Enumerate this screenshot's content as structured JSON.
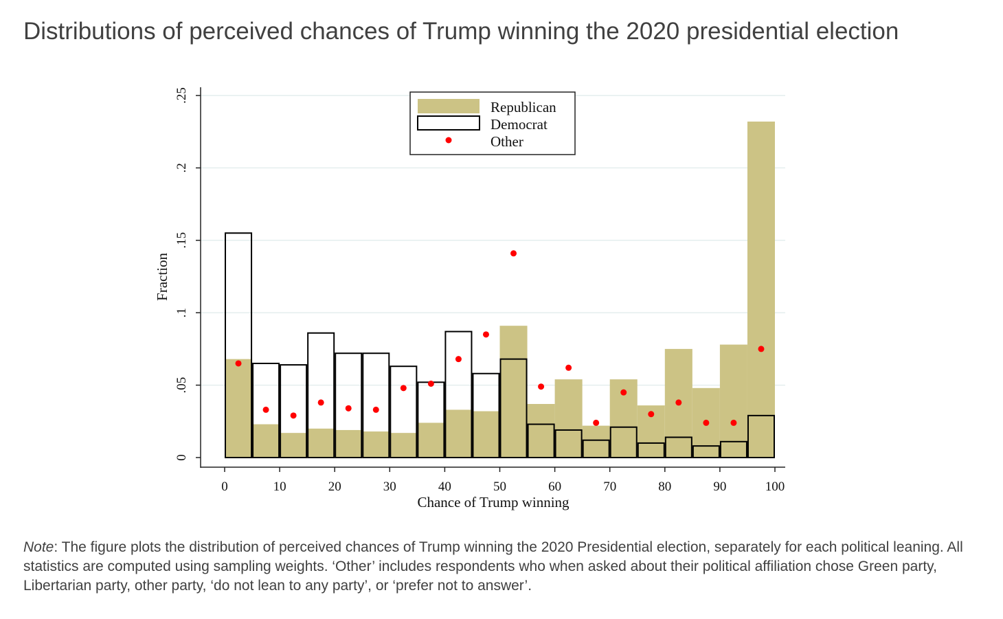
{
  "title": "Distributions of perceived chances of Trump winning the 2020 presidential election",
  "note": {
    "label": "Note",
    "text": ": The figure plots the distribution of perceived chances of Trump winning the 2020 Presidential election, separately for each political leaning. All statistics are computed using sampling weights. ‘Other’ includes respondents who when asked about their political affiliation chose Green party, Libertarian party, other party, ‘do not lean to any party’, or ‘prefer not to answer’."
  },
  "chart_data": {
    "type": "bar",
    "xlabel": "Chance of Trump winning",
    "ylabel": "Fraction",
    "xlim": [
      0,
      100
    ],
    "ylim": [
      0,
      0.25
    ],
    "bin_width": 5,
    "bin_starts": [
      0,
      5,
      10,
      15,
      20,
      25,
      30,
      35,
      40,
      45,
      50,
      55,
      60,
      65,
      70,
      75,
      80,
      85,
      90,
      95
    ],
    "x_ticks": [
      "0",
      "10",
      "20",
      "30",
      "40",
      "50",
      "60",
      "70",
      "80",
      "90",
      "100"
    ],
    "y_ticks": [
      "0",
      ".05",
      ".1",
      ".15",
      ".2",
      ".25"
    ],
    "y_tick_values": [
      0,
      0.05,
      0.1,
      0.15,
      0.2,
      0.25
    ],
    "grid": true,
    "legend_position": "top-center",
    "colors": {
      "republican": "#ccc385",
      "democrat": "#000000",
      "other": "#ff0000",
      "grid": "#e4eeee"
    },
    "series": [
      {
        "name": "Republican",
        "kind": "filled-bar",
        "values": [
          0.068,
          0.023,
          0.017,
          0.02,
          0.019,
          0.018,
          0.017,
          0.024,
          0.033,
          0.032,
          0.091,
          0.037,
          0.054,
          0.022,
          0.054,
          0.036,
          0.075,
          0.048,
          0.078,
          0.232
        ]
      },
      {
        "name": "Democrat",
        "kind": "outline-bar",
        "values": [
          0.155,
          0.065,
          0.064,
          0.086,
          0.072,
          0.072,
          0.063,
          0.052,
          0.087,
          0.058,
          0.068,
          0.023,
          0.019,
          0.012,
          0.021,
          0.01,
          0.014,
          0.008,
          0.011,
          0.029
        ]
      },
      {
        "name": "Other",
        "kind": "dot",
        "values": [
          0.065,
          0.033,
          0.029,
          0.038,
          0.034,
          0.033,
          0.048,
          0.051,
          0.068,
          0.085,
          0.141,
          0.049,
          0.062,
          0.024,
          0.045,
          0.03,
          0.038,
          0.024,
          0.024,
          0.075
        ]
      }
    ]
  }
}
